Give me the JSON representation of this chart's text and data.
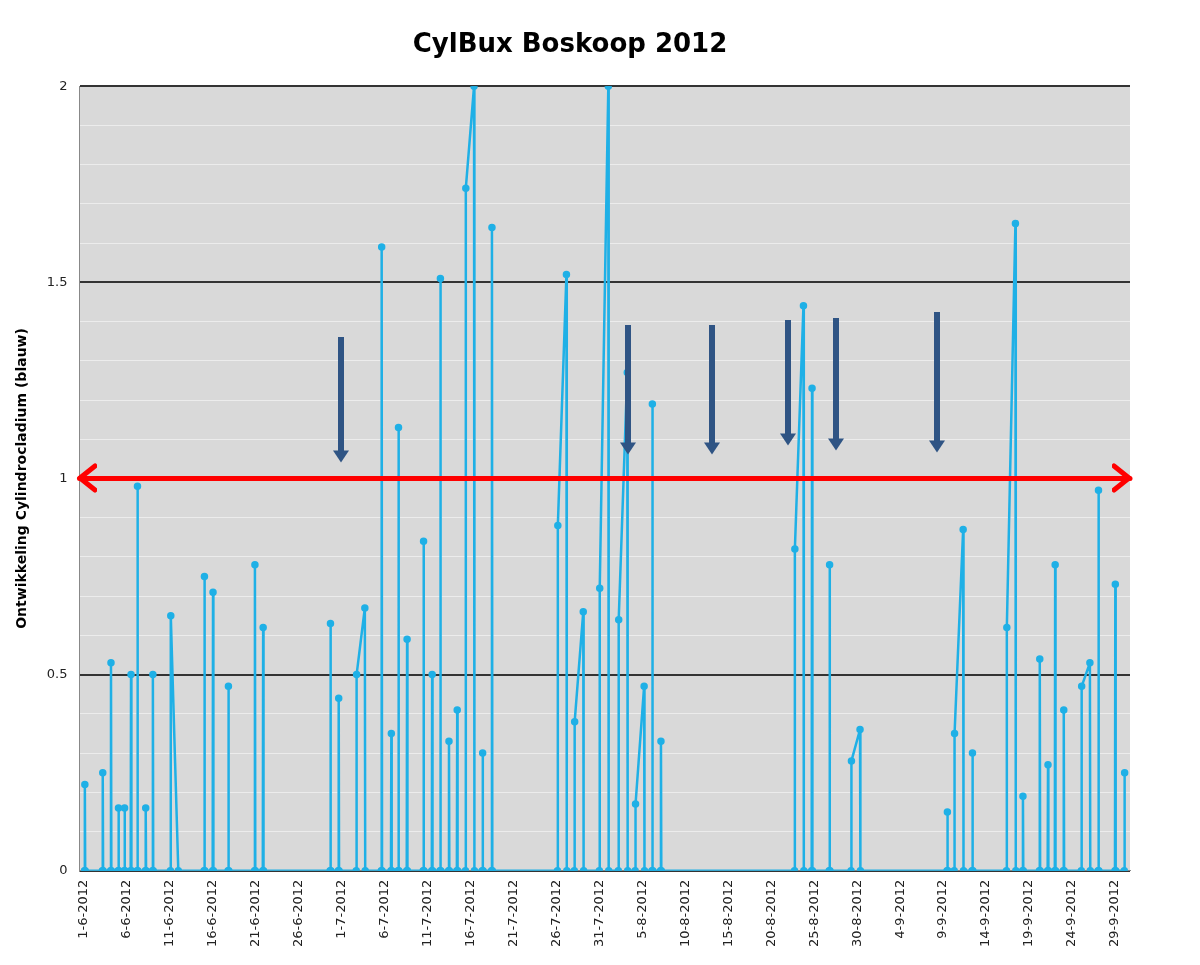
{
  "chart_data": {
    "type": "line",
    "title": "CylBux Boskoop 2012",
    "ylabel": "Ontwikkeling Cylindrocladium (blauw)",
    "legend": false,
    "grid": "y",
    "marker": "circle",
    "line_style": "solid",
    "xlim": [
      "2012-05-31T12:00",
      "2012-09-30T18:00"
    ],
    "xticks": [
      {
        "value": "2012-06-01",
        "label": "1-6-2012"
      },
      {
        "value": "2012-06-06",
        "label": "6-6-2012"
      },
      {
        "value": "2012-06-11",
        "label": "11-6-2012"
      },
      {
        "value": "2012-06-16",
        "label": "16-6-2012"
      },
      {
        "value": "2012-06-21",
        "label": "21-6-2012"
      },
      {
        "value": "2012-06-26",
        "label": "26-6-2012"
      },
      {
        "value": "2012-07-01",
        "label": "1-7-2012"
      },
      {
        "value": "2012-07-06",
        "label": "6-7-2012"
      },
      {
        "value": "2012-07-11",
        "label": "11-7-2012"
      },
      {
        "value": "2012-07-16",
        "label": "16-7-2012"
      },
      {
        "value": "2012-07-21",
        "label": "21-7-2012"
      },
      {
        "value": "2012-07-26",
        "label": "26-7-2012"
      },
      {
        "value": "2012-07-31",
        "label": "31-7-2012"
      },
      {
        "value": "2012-08-05",
        "label": "5-8-2012"
      },
      {
        "value": "2012-08-10",
        "label": "10-8-2012"
      },
      {
        "value": "2012-08-15",
        "label": "15-8-2012"
      },
      {
        "value": "2012-08-20",
        "label": "20-8-2012"
      },
      {
        "value": "2012-08-25",
        "label": "25-8-2012"
      },
      {
        "value": "2012-08-30",
        "label": "30-8-2012"
      },
      {
        "value": "2012-09-04",
        "label": "4-9-2012"
      },
      {
        "value": "2012-09-09",
        "label": "9-9-2012"
      },
      {
        "value": "2012-09-14",
        "label": "14-9-2012"
      },
      {
        "value": "2012-09-19",
        "label": "19-9-2012"
      },
      {
        "value": "2012-09-24",
        "label": "24-9-2012"
      },
      {
        "value": "2012-09-29",
        "label": "29-9-2012"
      }
    ],
    "ylim": [
      0,
      2
    ],
    "yticks": [
      0,
      {
        "value": 0.1,
        "label": null
      },
      {
        "value": 0.2,
        "label": null
      },
      {
        "value": 0.3,
        "label": null
      },
      {
        "value": 0.4,
        "label": null
      },
      0.5,
      {
        "value": 0.6,
        "label": null
      },
      {
        "value": 0.7,
        "label": null
      },
      {
        "value": 0.8,
        "label": null
      },
      {
        "value": 0.9,
        "label": null
      },
      1,
      {
        "value": 1.1,
        "label": null
      },
      {
        "value": 1.2,
        "label": null
      },
      {
        "value": 1.3,
        "label": null
      },
      {
        "value": 1.4,
        "label": null
      },
      1.5,
      {
        "value": 1.6,
        "label": null
      },
      {
        "value": 1.7,
        "label": null
      },
      {
        "value": 1.8,
        "label": null
      },
      {
        "value": 1.9,
        "label": null
      },
      2
    ],
    "ref_lines": [
      {
        "axis": "y",
        "value": 1,
        "color": "#ff0000"
      }
    ],
    "series": [
      {
        "color": "#1fb0e6",
        "x": [
          "2012-06-01T02:00",
          "2012-06-01T03:00",
          "2012-06-01T04:00",
          "2012-06-03T04:00",
          "2012-06-03T05:00",
          "2012-06-03T06:00",
          "2012-06-04T03:00",
          "2012-06-04T04:00",
          "2012-06-04T05:00",
          "2012-06-05T00:00",
          "2012-06-05T01:00",
          "2012-06-05T02:00",
          "2012-06-05T17:00",
          "2012-06-05T18:00",
          "2012-06-05T19:00",
          "2012-06-06T11:00",
          "2012-06-06T12:00",
          "2012-06-06T13:00",
          "2012-06-07T05:00",
          "2012-06-07T06:00",
          "2012-06-07T07:00",
          "2012-06-08T04:00",
          "2012-06-08T05:00",
          "2012-06-08T06:00",
          "2012-06-09T00:00",
          "2012-06-09T01:00",
          "2012-06-09T02:00",
          "2012-06-11T02:00",
          "2012-06-11T03:00",
          "2012-06-12T00:00",
          "2012-06-15T00:00",
          "2012-06-15T01:00",
          "2012-06-15T02:00",
          "2012-06-16T00:00",
          "2012-06-16T01:00",
          "2012-06-16T02:00",
          "2012-06-17T19:00",
          "2012-06-17T20:00",
          "2012-06-17T21:00",
          "2012-06-20T21:00",
          "2012-06-20T22:00",
          "2012-06-20T23:00",
          "2012-06-21T20:00",
          "2012-06-21T21:00",
          "2012-06-21T22:00",
          "2012-06-29T16:00",
          "2012-06-29T17:00",
          "2012-06-29T18:00",
          "2012-06-30T15:00",
          "2012-06-30T16:00",
          "2012-06-30T17:00",
          "2012-07-02T17:00",
          "2012-07-02T18:00",
          "2012-07-03T17:00",
          "2012-07-03T18:00",
          "2012-07-05T15:00",
          "2012-07-05T16:00",
          "2012-07-05T17:00",
          "2012-07-06T18:00",
          "2012-07-06T19:00",
          "2012-07-06T20:00",
          "2012-07-07T14:00",
          "2012-07-07T15:00",
          "2012-07-07T16:00",
          "2012-07-08T14:00",
          "2012-07-08T15:00",
          "2012-07-08T16:00",
          "2012-07-10T12:00",
          "2012-07-10T13:00",
          "2012-07-10T14:00",
          "2012-07-11T12:00",
          "2012-07-11T13:00",
          "2012-07-11T14:00",
          "2012-07-12T11:00",
          "2012-07-12T12:00",
          "2012-07-12T13:00",
          "2012-07-13T11:00",
          "2012-07-13T12:00",
          "2012-07-13T13:00",
          "2012-07-14T10:00",
          "2012-07-14T11:00",
          "2012-07-14T12:00",
          "2012-07-15T10:00",
          "2012-07-15T11:00",
          "2012-07-16T10:00",
          "2012-07-16T11:00",
          "2012-07-17T09:00",
          "2012-07-17T10:00",
          "2012-07-17T11:00",
          "2012-07-18T11:00",
          "2012-07-18T12:00",
          "2012-07-18T13:00",
          "2012-07-26T03:00",
          "2012-07-26T04:00",
          "2012-07-27T04:00",
          "2012-07-27T05:00",
          "2012-07-28T02:00",
          "2012-07-28T03:00",
          "2012-07-29T03:00",
          "2012-07-29T04:00",
          "2012-07-31T00:00",
          "2012-07-31T01:00",
          "2012-08-01T01:00",
          "2012-08-01T02:00",
          "2012-08-02T05:00",
          "2012-08-02T06:00",
          "2012-08-03T06:00",
          "2012-08-03T07:00",
          "2012-08-04T04:00",
          "2012-08-04T05:00",
          "2012-08-05T05:00",
          "2012-08-05T06:00",
          "2012-08-06T03:00",
          "2012-08-06T04:00",
          "2012-08-06T05:00",
          "2012-08-07T03:00",
          "2012-08-07T04:00",
          "2012-08-07T05:00",
          "2012-08-22T17:00",
          "2012-08-22T18:00",
          "2012-08-23T18:00",
          "2012-08-23T19:00",
          "2012-08-24T17:00",
          "2012-08-24T18:00",
          "2012-08-24T19:00",
          "2012-08-26T18:00",
          "2012-08-26T19:00",
          "2012-08-26T20:00",
          "2012-08-29T07:00",
          "2012-08-29T08:00",
          "2012-08-30T08:00",
          "2012-08-30T09:00",
          "2012-09-09T11:00",
          "2012-09-09T12:00",
          "2012-09-09T13:00",
          "2012-09-10T07:00",
          "2012-09-10T08:00",
          "2012-09-11T08:00",
          "2012-09-11T09:00",
          "2012-09-12T09:00",
          "2012-09-12T10:00",
          "2012-09-12T11:00",
          "2012-09-16T09:00",
          "2012-09-16T10:00",
          "2012-09-17T10:00",
          "2012-09-17T11:00",
          "2012-09-18T06:00",
          "2012-09-18T07:00",
          "2012-09-18T08:00",
          "2012-09-20T05:00",
          "2012-09-20T06:00",
          "2012-09-20T07:00",
          "2012-09-21T04:00",
          "2012-09-21T05:00",
          "2012-09-21T06:00",
          "2012-09-22T00:00",
          "2012-09-22T01:00",
          "2012-09-22T02:00",
          "2012-09-23T00:00",
          "2012-09-23T01:00",
          "2012-09-23T02:00",
          "2012-09-25T02:00",
          "2012-09-25T03:00",
          "2012-09-26T02:00",
          "2012-09-26T03:00",
          "2012-09-27T01:00",
          "2012-09-27T02:00",
          "2012-09-27T03:00",
          "2012-09-29T00:00",
          "2012-09-29T01:00",
          "2012-09-29T02:00",
          "2012-09-30T02:00",
          "2012-09-30T03:00"
        ],
        "values": [
          0,
          0.22,
          0,
          0,
          0.25,
          0,
          0,
          0.53,
          0,
          0,
          0.16,
          0,
          0,
          0.16,
          0,
          0,
          0.5,
          0,
          0,
          0.98,
          0,
          0,
          0.16,
          0,
          0,
          0.5,
          0,
          0,
          0.65,
          0,
          0,
          0.75,
          0,
          0,
          0.71,
          0,
          0,
          0.47,
          0,
          0,
          0.78,
          0,
          0,
          0.62,
          0,
          0,
          0.63,
          0,
          0,
          0.44,
          0,
          0,
          0.5,
          0.67,
          0,
          0,
          1.59,
          0,
          0,
          0.35,
          0,
          0,
          1.13,
          0,
          0,
          0.59,
          0,
          0,
          0.84,
          0,
          0,
          0.5,
          0,
          0,
          1.51,
          0,
          0,
          0.33,
          0,
          0,
          0.41,
          0,
          0,
          1.74,
          2,
          0,
          0,
          0.3,
          0,
          0,
          1.64,
          0,
          0,
          0.88,
          1.52,
          0,
          0,
          0.38,
          0.66,
          0,
          0,
          0.72,
          2,
          0,
          0,
          0.64,
          1.27,
          0,
          0,
          0.17,
          0.47,
          0,
          0,
          1.19,
          0,
          0,
          0.33,
          0,
          0,
          0.82,
          1.44,
          0,
          0,
          1.23,
          0,
          0,
          0.78,
          0,
          0,
          0.28,
          0.36,
          0,
          0,
          0.15,
          0,
          0,
          0.35,
          0.87,
          0,
          0,
          0.3,
          0,
          0,
          0.62,
          1.65,
          0,
          0,
          0.19,
          0,
          0,
          0.54,
          0,
          0,
          0.27,
          0,
          0,
          0.78,
          0,
          0,
          0.41,
          0,
          0,
          0.47,
          0.53,
          0,
          0,
          0.97,
          0,
          0,
          0.73,
          0,
          0,
          0.25
        ]
      }
    ]
  }
}
